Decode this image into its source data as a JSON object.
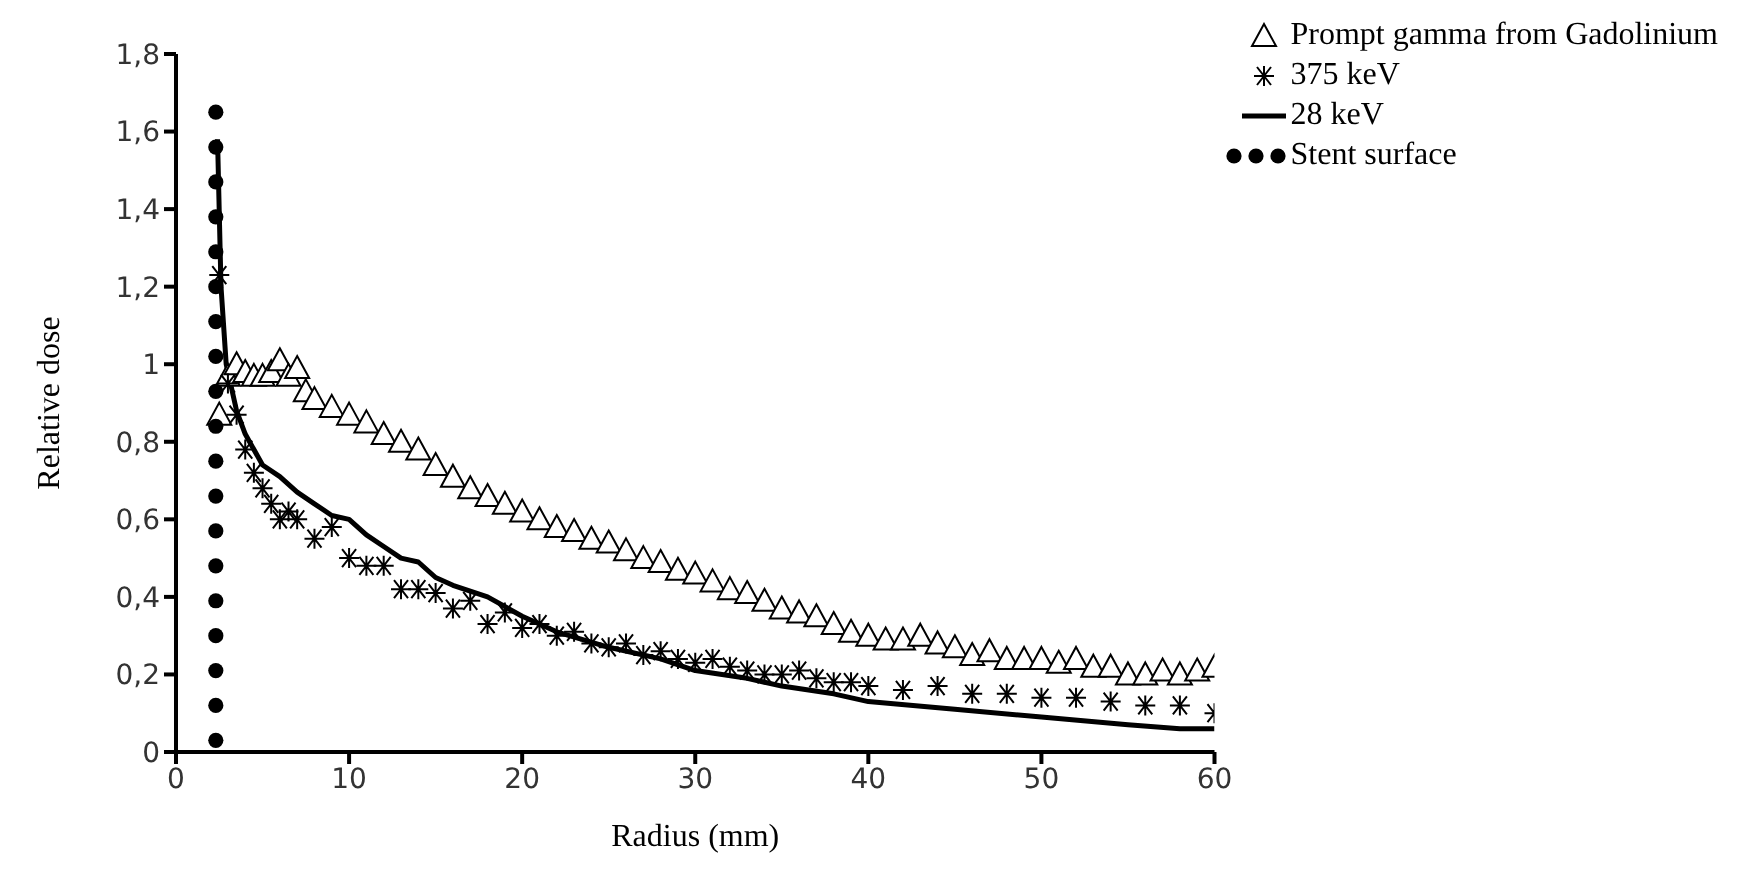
{
  "chart_data": {
    "type": "scatter",
    "xlabel": "Radius (mm)",
    "ylabel": "Relative dose",
    "xlim": [
      0,
      60
    ],
    "xticks": [
      0,
      10,
      20,
      30,
      40,
      50,
      60
    ],
    "ylim": [
      0,
      1.8
    ],
    "yticks": [
      0,
      {
        "value": 0.2,
        "label": "0,2"
      },
      {
        "value": 0.4,
        "label": "0,4"
      },
      {
        "value": 0.6,
        "label": "0,6"
      },
      {
        "value": 0.8,
        "label": "0,8"
      },
      1,
      {
        "value": 1.2,
        "label": "1,2"
      },
      {
        "value": 1.4,
        "label": "1,4"
      },
      {
        "value": 1.6,
        "label": "1,6"
      },
      {
        "value": 1.8,
        "label": "1,8"
      }
    ],
    "grid": false,
    "legend": "top right",
    "series": [
      {
        "name": "Prompt gamma from Gadolinium",
        "marker": "triangle",
        "color": "#000000",
        "x": [
          2.5,
          3,
          3.5,
          4,
          4.5,
          5,
          5.5,
          6,
          6.5,
          7,
          7.5,
          8,
          9,
          10,
          11,
          12,
          13,
          14,
          15,
          16,
          17,
          18,
          19,
          20,
          21,
          22,
          23,
          24,
          25,
          26,
          27,
          28,
          29,
          30,
          31,
          32,
          33,
          34,
          35,
          36,
          37,
          38,
          39,
          40,
          41,
          42,
          43,
          44,
          45,
          46,
          47,
          48,
          49,
          50,
          51,
          52,
          53,
          54,
          55,
          56,
          57,
          58,
          59,
          60
        ],
        "values": [
          0.87,
          0.97,
          1.0,
          0.98,
          0.97,
          0.97,
          0.98,
          1.01,
          0.97,
          0.99,
          0.93,
          0.91,
          0.89,
          0.87,
          0.85,
          0.82,
          0.8,
          0.78,
          0.74,
          0.71,
          0.68,
          0.66,
          0.64,
          0.62,
          0.6,
          0.58,
          0.57,
          0.55,
          0.54,
          0.52,
          0.5,
          0.49,
          0.47,
          0.46,
          0.44,
          0.42,
          0.41,
          0.39,
          0.37,
          0.36,
          0.35,
          0.33,
          0.31,
          0.3,
          0.29,
          0.29,
          0.3,
          0.28,
          0.27,
          0.25,
          0.26,
          0.24,
          0.24,
          0.24,
          0.23,
          0.24,
          0.22,
          0.22,
          0.2,
          0.2,
          0.21,
          0.2,
          0.21,
          0.22
        ]
      },
      {
        "name": "375 keV",
        "marker": "cross",
        "color": "#000000",
        "x": [
          2.5,
          3,
          3.5,
          4,
          4.5,
          5,
          5.5,
          6,
          6.5,
          7,
          8,
          9,
          10,
          11,
          12,
          13,
          14,
          15,
          16,
          17,
          18,
          19,
          20,
          21,
          22,
          23,
          24,
          25,
          26,
          27,
          28,
          29,
          30,
          31,
          32,
          33,
          34,
          35,
          36,
          37,
          38,
          39,
          40,
          42,
          44,
          46,
          48,
          50,
          52,
          54,
          56,
          58,
          60
        ],
        "values": [
          1.23,
          0.95,
          0.87,
          0.78,
          0.72,
          0.68,
          0.64,
          0.6,
          0.62,
          0.6,
          0.55,
          0.58,
          0.5,
          0.48,
          0.48,
          0.42,
          0.42,
          0.41,
          0.37,
          0.39,
          0.33,
          0.36,
          0.32,
          0.33,
          0.3,
          0.31,
          0.28,
          0.27,
          0.28,
          0.25,
          0.26,
          0.24,
          0.23,
          0.24,
          0.22,
          0.21,
          0.2,
          0.2,
          0.21,
          0.19,
          0.18,
          0.18,
          0.17,
          0.16,
          0.17,
          0.15,
          0.15,
          0.14,
          0.14,
          0.13,
          0.12,
          0.12,
          0.1
        ]
      },
      {
        "name": "28 keV",
        "type": "line",
        "marker": "none",
        "color": "#000000",
        "x": [
          2.4,
          2.6,
          2.9,
          3.5,
          4,
          5,
          6,
          7,
          8,
          9,
          10,
          11,
          12,
          13,
          14,
          15,
          16,
          18,
          20,
          22,
          25,
          28,
          30,
          33,
          35,
          38,
          40,
          45,
          50,
          55,
          58,
          60
        ],
        "values": [
          1.58,
          1.2,
          1.0,
          0.88,
          0.82,
          0.74,
          0.71,
          0.67,
          0.64,
          0.61,
          0.6,
          0.56,
          0.53,
          0.5,
          0.49,
          0.45,
          0.43,
          0.4,
          0.35,
          0.31,
          0.27,
          0.24,
          0.21,
          0.19,
          0.17,
          0.15,
          0.13,
          0.11,
          0.09,
          0.07,
          0.06,
          0.06
        ]
      },
      {
        "name": "Stent surface",
        "marker": "circle",
        "color": "#000000",
        "x": [
          2.3,
          2.3,
          2.3,
          2.3,
          2.3,
          2.3,
          2.3,
          2.3,
          2.3,
          2.3,
          2.3,
          2.3,
          2.3,
          2.3,
          2.3,
          2.3,
          2.3,
          2.3,
          2.3
        ],
        "values": [
          0.03,
          0.12,
          0.21,
          0.3,
          0.39,
          0.48,
          0.57,
          0.66,
          0.75,
          0.84,
          0.93,
          1.02,
          1.11,
          1.2,
          1.29,
          1.38,
          1.47,
          1.56,
          1.65
        ]
      }
    ]
  }
}
